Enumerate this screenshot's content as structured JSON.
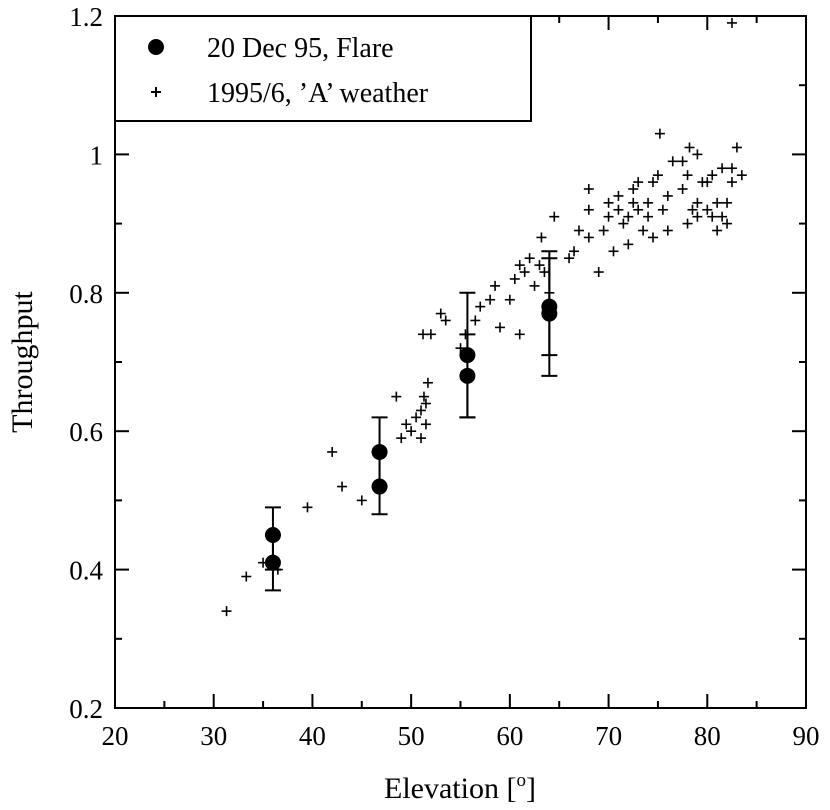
{
  "chart_data": {
    "type": "scatter",
    "xlabel": "Elevation [",
    "xlabel_sup": "o",
    "xlabel_close": "]",
    "ylabel": "Throughput",
    "xlim": [
      20,
      90
    ],
    "ylim": [
      0.2,
      1.2
    ],
    "x_ticks": [
      20,
      30,
      40,
      50,
      60,
      70,
      80,
      90
    ],
    "x_tick_labels": [
      "20",
      "30",
      "40",
      "50",
      "60",
      "70",
      "80",
      "90"
    ],
    "y_ticks": [
      0.2,
      0.4,
      0.6,
      0.8,
      1.0,
      1.2
    ],
    "y_tick_labels": [
      "0.2",
      "0.4",
      "0.6",
      "0.8",
      "1",
      "1.2"
    ],
    "legend_position": "top-left",
    "series": [
      {
        "name": "20 Dec 95, Flare",
        "marker": "circle",
        "points": [
          {
            "x": 36.0,
            "y": 0.45,
            "err_lo": 0.4,
            "err_hi": 0.49
          },
          {
            "x": 36.0,
            "y": 0.41,
            "err_lo": 0.37,
            "err_hi": 0.45
          },
          {
            "x": 46.8,
            "y": 0.57,
            "err_lo": 0.52,
            "err_hi": 0.62
          },
          {
            "x": 46.8,
            "y": 0.52,
            "err_lo": 0.48,
            "err_hi": 0.57
          },
          {
            "x": 55.7,
            "y": 0.71,
            "err_lo": 0.62,
            "err_hi": 0.8
          },
          {
            "x": 55.7,
            "y": 0.68,
            "err_lo": 0.62,
            "err_hi": 0.74
          },
          {
            "x": 64.0,
            "y": 0.78,
            "err_lo": 0.71,
            "err_hi": 0.86
          },
          {
            "x": 64.0,
            "y": 0.77,
            "err_lo": 0.68,
            "err_hi": 0.85
          }
        ]
      },
      {
        "name": "1995/6, 'A' weather",
        "display_name": "1995/6, ’A’ weather",
        "marker": "plus",
        "points": [
          [
            31.3,
            0.34
          ],
          [
            33.3,
            0.39
          ],
          [
            35.0,
            0.41
          ],
          [
            36.5,
            0.4
          ],
          [
            39.5,
            0.49
          ],
          [
            42.0,
            0.57
          ],
          [
            43.0,
            0.52
          ],
          [
            45.0,
            0.5
          ],
          [
            48.5,
            0.65
          ],
          [
            49.0,
            0.59
          ],
          [
            49.5,
            0.61
          ],
          [
            50.0,
            0.6
          ],
          [
            50.5,
            0.62
          ],
          [
            51.0,
            0.59
          ],
          [
            51.0,
            0.63
          ],
          [
            51.2,
            0.74
          ],
          [
            51.3,
            0.65
          ],
          [
            51.5,
            0.61
          ],
          [
            51.5,
            0.64
          ],
          [
            51.7,
            0.67
          ],
          [
            52.0,
            0.74
          ],
          [
            53.0,
            0.77
          ],
          [
            53.5,
            0.76
          ],
          [
            55.0,
            0.72
          ],
          [
            55.5,
            0.74
          ],
          [
            56.5,
            0.76
          ],
          [
            57.0,
            0.78
          ],
          [
            58.0,
            0.79
          ],
          [
            58.5,
            0.81
          ],
          [
            59.0,
            0.75
          ],
          [
            60.0,
            0.79
          ],
          [
            60.5,
            0.82
          ],
          [
            61.0,
            0.84
          ],
          [
            61.5,
            0.83
          ],
          [
            62.0,
            0.85
          ],
          [
            62.5,
            0.81
          ],
          [
            63.0,
            0.84
          ],
          [
            61.0,
            0.74
          ],
          [
            63.2,
            0.88
          ],
          [
            63.5,
            0.83
          ],
          [
            64.0,
            0.8
          ],
          [
            64.5,
            0.91
          ],
          [
            66.0,
            0.85
          ],
          [
            66.5,
            0.86
          ],
          [
            67.0,
            0.89
          ],
          [
            68.0,
            0.88
          ],
          [
            68.0,
            0.92
          ],
          [
            68.0,
            0.95
          ],
          [
            69.0,
            0.83
          ],
          [
            69.5,
            0.89
          ],
          [
            70.0,
            0.91
          ],
          [
            70.0,
            0.93
          ],
          [
            70.5,
            0.86
          ],
          [
            71.0,
            0.92
          ],
          [
            71.0,
            0.94
          ],
          [
            71.5,
            0.9
          ],
          [
            72.0,
            0.87
          ],
          [
            72.0,
            0.91
          ],
          [
            72.5,
            0.93
          ],
          [
            72.5,
            0.95
          ],
          [
            73.0,
            0.92
          ],
          [
            73.0,
            0.96
          ],
          [
            73.5,
            0.89
          ],
          [
            74.0,
            0.91
          ],
          [
            74.0,
            0.93
          ],
          [
            74.5,
            0.88
          ],
          [
            74.5,
            0.96
          ],
          [
            75.0,
            0.97
          ],
          [
            75.2,
            1.03
          ],
          [
            75.5,
            0.92
          ],
          [
            76.0,
            0.89
          ],
          [
            76.0,
            0.94
          ],
          [
            76.5,
            0.99
          ],
          [
            77.5,
            0.95
          ],
          [
            77.5,
            0.99
          ],
          [
            78.0,
            0.9
          ],
          [
            78.0,
            0.97
          ],
          [
            78.2,
            1.01
          ],
          [
            78.5,
            0.92
          ],
          [
            79.0,
            0.91
          ],
          [
            79.0,
            0.93
          ],
          [
            79.0,
            1.0
          ],
          [
            79.5,
            0.96
          ],
          [
            80.0,
            0.92
          ],
          [
            80.0,
            0.96
          ],
          [
            80.5,
            0.91
          ],
          [
            80.5,
            0.97
          ],
          [
            81.0,
            0.89
          ],
          [
            81.0,
            0.93
          ],
          [
            81.5,
            0.91
          ],
          [
            81.5,
            0.98
          ],
          [
            82.0,
            0.9
          ],
          [
            82.0,
            0.93
          ],
          [
            82.5,
            0.96
          ],
          [
            82.5,
            0.98
          ],
          [
            83.0,
            1.01
          ],
          [
            83.5,
            0.97
          ],
          [
            82.5,
            1.19
          ]
        ]
      }
    ]
  }
}
